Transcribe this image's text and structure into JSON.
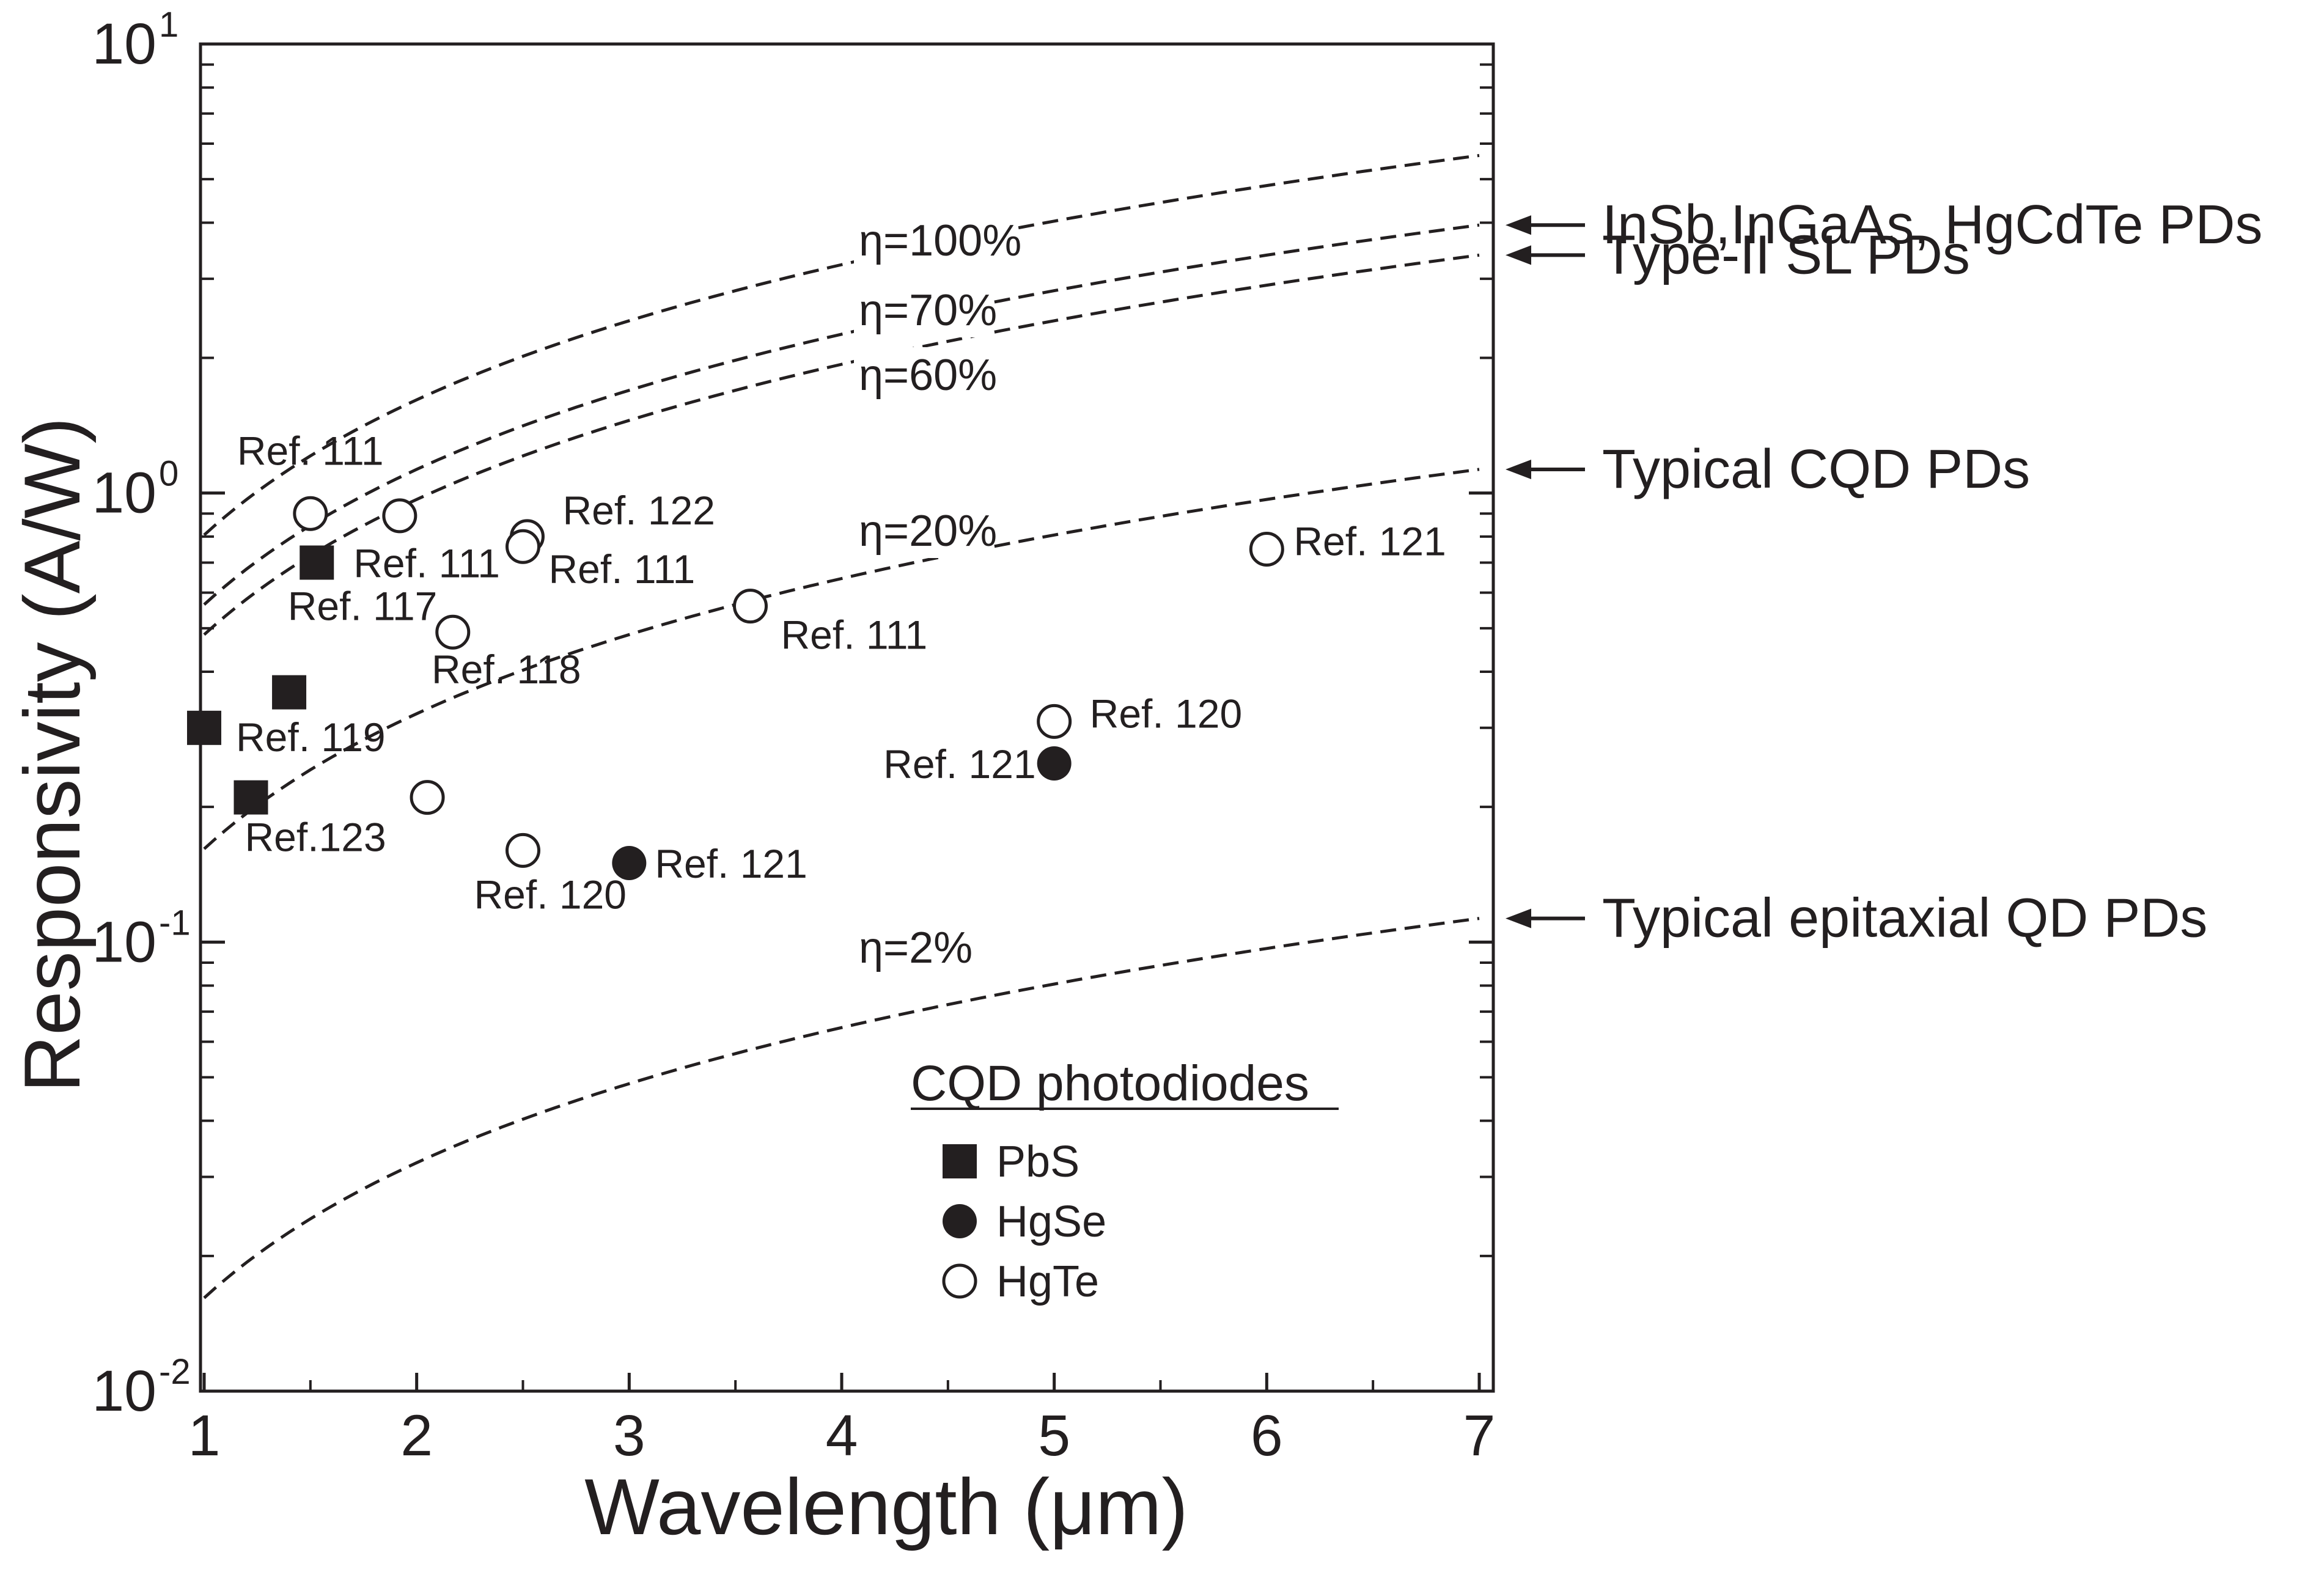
{
  "chart_data": {
    "type": "scatter",
    "title": "",
    "xlabel": "Wavelength (μm)",
    "ylabel": "Responsivity (A/W)",
    "xlim": [
      1,
      7.1
    ],
    "ylim": [
      0.01,
      10
    ],
    "yscale": "log",
    "x_ticks": [
      "1",
      "2",
      "3",
      "4",
      "5",
      "6",
      "7"
    ],
    "y_ticks": [
      {
        "base": "10",
        "exp": "1",
        "value": 10
      },
      {
        "base": "10",
        "exp": "0",
        "value": 1
      },
      {
        "base": "10",
        "exp": "-1",
        "value": 0.1
      },
      {
        "base": "10",
        "exp": "-2",
        "value": 0.01
      }
    ],
    "efficiency_curves": [
      {
        "label": "η=100%",
        "eta": 1.0,
        "x_range": [
          1,
          7
        ]
      },
      {
        "label": "η=70%",
        "eta": 0.7,
        "x_range": [
          1,
          7
        ]
      },
      {
        "label": "η=60%",
        "eta": 0.6,
        "x_range": [
          1,
          7
        ]
      },
      {
        "label": "η=20%",
        "eta": 0.2,
        "x_range": [
          1,
          7
        ]
      },
      {
        "label": "η=2%",
        "eta": 0.02,
        "x_range": [
          1,
          7
        ]
      }
    ],
    "curve_annotations": [
      {
        "text": "InSb,InGaAs, HgCdTe PDs",
        "points_to": "η=70%"
      },
      {
        "text": "Type-II SL PDs",
        "points_to": "η=60%"
      },
      {
        "text": "Typical CQD PDs",
        "points_to": "η=20%"
      },
      {
        "text": "Typical epitaxial QD PDs",
        "points_to": "η=2%"
      }
    ],
    "series": [
      {
        "name": "PbS",
        "marker": "filled-square",
        "points": [
          {
            "x": 1.0,
            "y": 0.3,
            "ref": "Ref. 119"
          },
          {
            "x": 1.22,
            "y": 0.21,
            "ref": "Ref.123"
          },
          {
            "x": 1.4,
            "y": 0.36,
            "ref": ""
          },
          {
            "x": 1.53,
            "y": 0.7,
            "ref": "Ref. 111"
          }
        ]
      },
      {
        "name": "HgSe",
        "marker": "filled-circle",
        "points": [
          {
            "x": 3.0,
            "y": 0.15,
            "ref": "Ref. 121"
          },
          {
            "x": 5.0,
            "y": 0.25,
            "ref": "Ref. 121"
          }
        ]
      },
      {
        "name": "HgTe",
        "marker": "open-circle",
        "points": [
          {
            "x": 1.5,
            "y": 0.9,
            "ref": "Ref. 111"
          },
          {
            "x": 1.92,
            "y": 0.89,
            "ref": ""
          },
          {
            "x": 2.17,
            "y": 0.49,
            "ref": "Ref. 117"
          },
          {
            "x": 2.05,
            "y": 0.21,
            "ref": ""
          },
          {
            "x": 2.5,
            "y": 0.16,
            "ref": "Ref. 120"
          },
          {
            "x": 2.52,
            "y": 0.8,
            "ref": "Ref. 122"
          },
          {
            "x": 2.5,
            "y": 0.76,
            "ref": "Ref. 111"
          },
          {
            "x": 3.57,
            "y": 0.56,
            "ref": "Ref. 111"
          },
          {
            "x": 5.0,
            "y": 0.31,
            "ref": "Ref. 120"
          },
          {
            "x": 6.0,
            "y": 0.75,
            "ref": "Ref. 121"
          }
        ]
      }
    ],
    "extra_labels": [
      {
        "text": "Ref. 118"
      }
    ],
    "legend": {
      "title": "CQD photodiodes",
      "position": "bottom-right inside plot",
      "entries": [
        "PbS",
        "HgSe",
        "HgTe"
      ]
    }
  }
}
